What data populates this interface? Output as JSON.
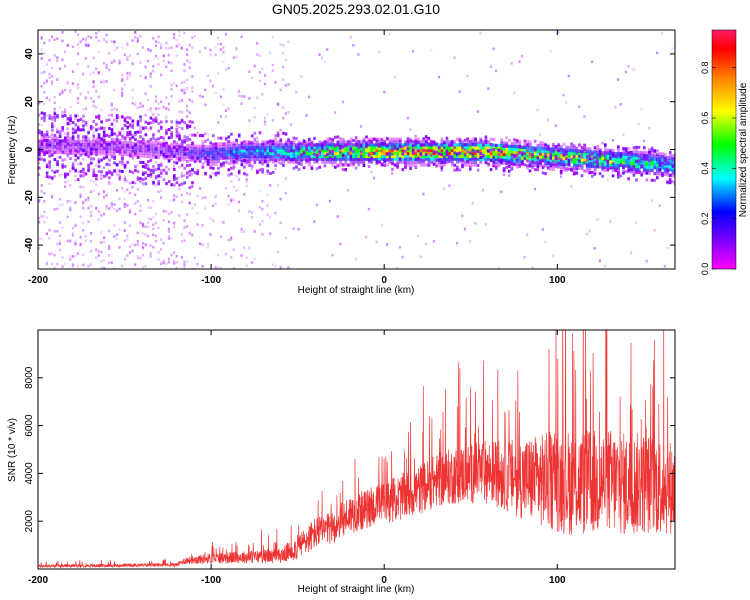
{
  "title": "GN05.2025.293.02.01.G10",
  "chart_data": [
    {
      "type": "heatmap",
      "xlabel": "Height of straight line (km)",
      "ylabel": "Frequency (Hz)",
      "xlim": [
        -200,
        168
      ],
      "ylim": [
        -50,
        50
      ],
      "xticks": [
        -200,
        -100,
        0,
        100
      ],
      "yticks": [
        -40,
        -20,
        0,
        20,
        40
      ],
      "colorbar": {
        "label": "Normalized spectral amplitude",
        "range": [
          0,
          0.95
        ],
        "ticks": [
          "0.0",
          "0.2",
          "0.4",
          "0.6",
          "0.8"
        ],
        "colormap": "rainbow (magenta to red)"
      },
      "ridge": {
        "x": [
          -200,
          -150,
          -120,
          -100,
          -80,
          -60,
          -40,
          -20,
          0,
          20,
          40,
          60,
          80,
          100,
          120,
          140,
          160,
          168
        ],
        "center_hz": [
          2,
          1,
          -1,
          -2,
          -1,
          -1,
          -1,
          -1,
          -1,
          -1,
          -1,
          -1,
          -2,
          -3,
          -4,
          -5,
          -6,
          -7
        ],
        "peak_amplitude": [
          0.12,
          0.12,
          0.15,
          0.25,
          0.35,
          0.4,
          0.55,
          0.7,
          0.8,
          0.85,
          0.8,
          0.85,
          0.7,
          0.65,
          0.6,
          0.55,
          0.45,
          0.4
        ]
      }
    },
    {
      "type": "line",
      "xlabel": "Height of straight line (km)",
      "ylabel": "SNR (10 * v/v)",
      "xlim": [
        -200,
        168
      ],
      "ylim": [
        0,
        10000
      ],
      "xticks": [
        -200,
        -100,
        0,
        100
      ],
      "yticks": [
        2000,
        4000,
        6000,
        8000
      ],
      "color": "#ee3333",
      "x": [
        -200,
        -150,
        -120,
        -115,
        -100,
        -80,
        -60,
        -50,
        -40,
        -30,
        -20,
        -10,
        0,
        10,
        20,
        30,
        40,
        50,
        60,
        70,
        80,
        90,
        100,
        110,
        120,
        130,
        140,
        150,
        160,
        168
      ],
      "mean": [
        120,
        150,
        180,
        350,
        450,
        500,
        550,
        900,
        1500,
        1700,
        2300,
        2500,
        2800,
        3000,
        3300,
        3700,
        3900,
        4000,
        4100,
        3900,
        3800,
        3700,
        3700,
        3600,
        3600,
        3700,
        3500,
        3600,
        3500,
        3400
      ],
      "spread": [
        80,
        90,
        100,
        200,
        300,
        350,
        400,
        700,
        900,
        900,
        1100,
        1100,
        1200,
        1300,
        1400,
        1500,
        1600,
        1700,
        1800,
        2000,
        2300,
        2600,
        2900,
        3000,
        3000,
        3000,
        2900,
        2900,
        2800,
        2600
      ]
    }
  ]
}
